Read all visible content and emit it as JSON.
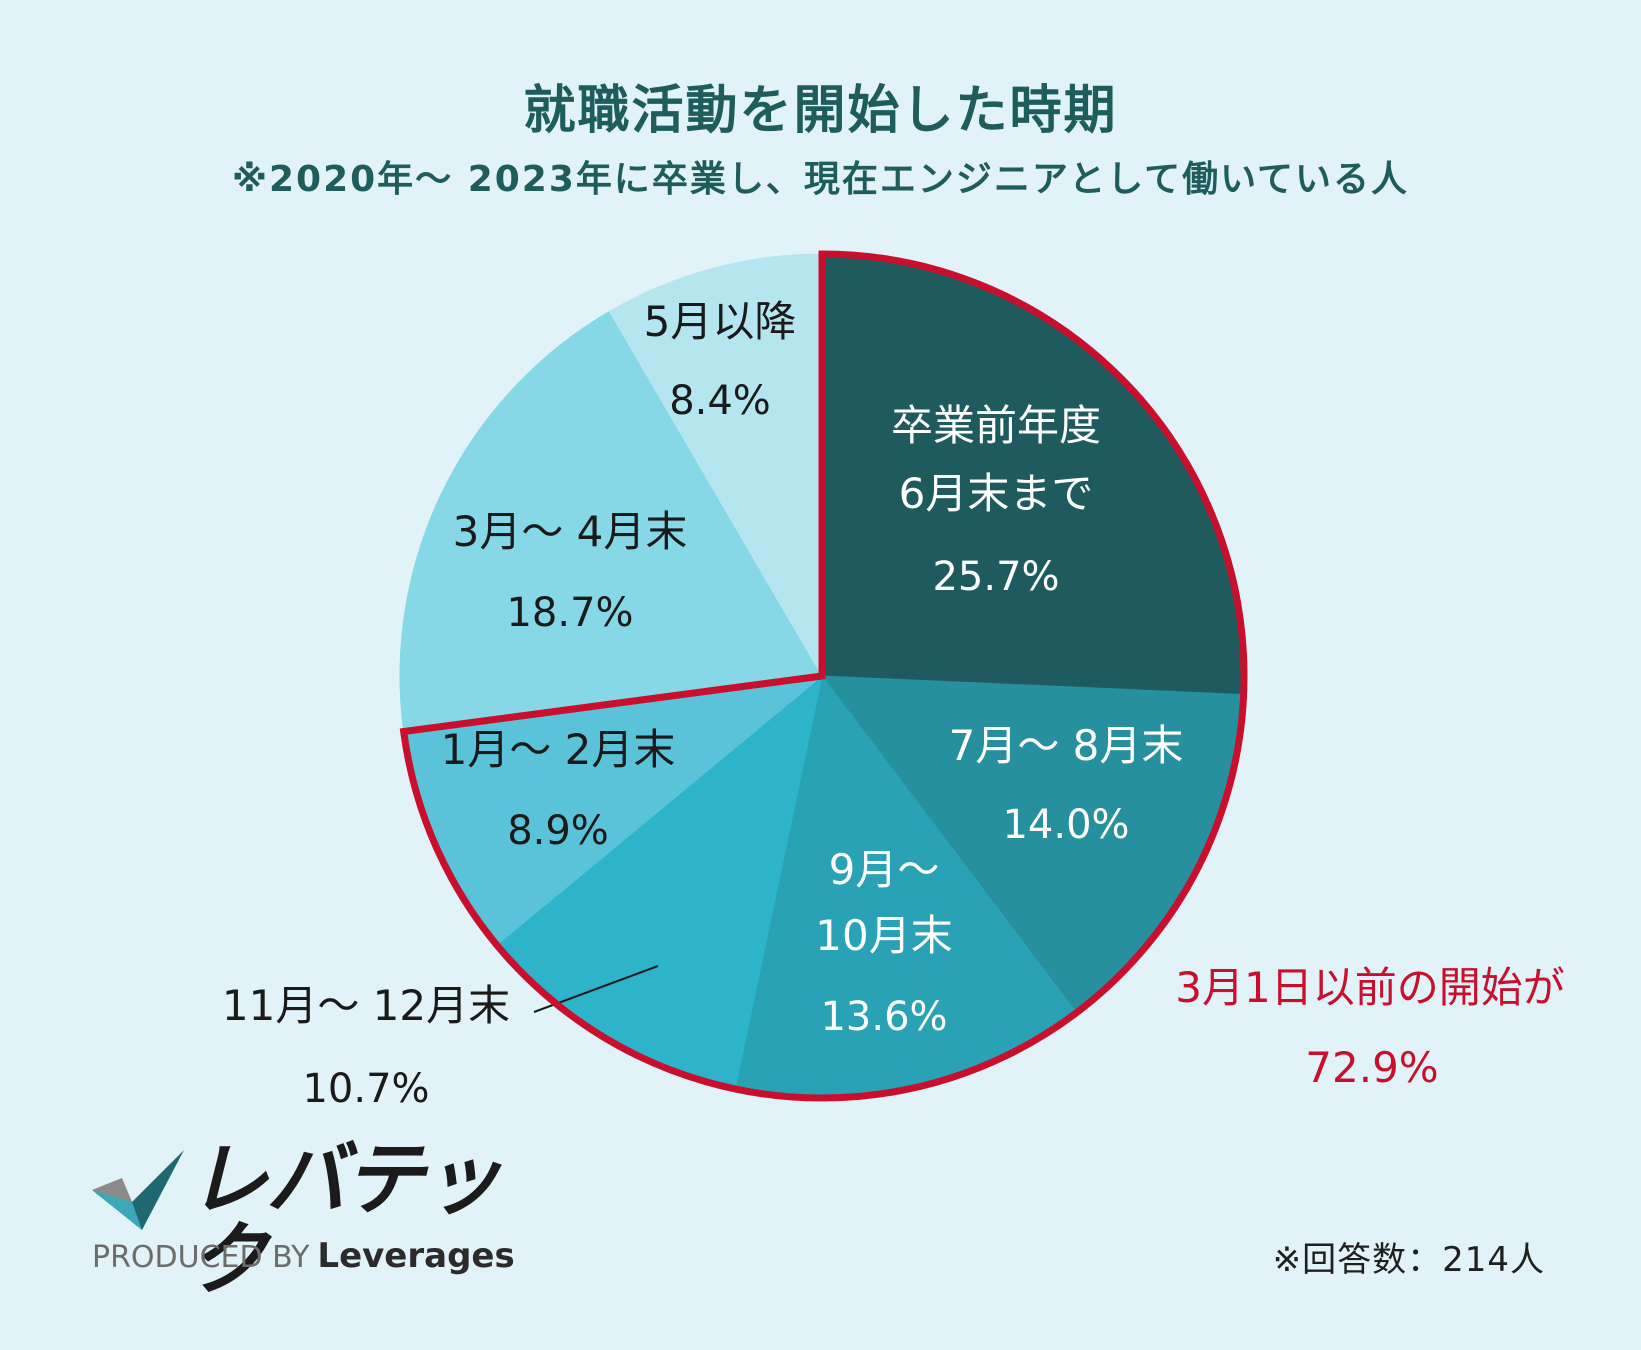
{
  "title": "就職活動を開始した時期",
  "subtitle": "※2020年〜 2023年に卒業し、現在エンジニアとして働いている人",
  "chart_data": {
    "type": "pie",
    "start_angle_deg": 0,
    "direction": "clockwise",
    "slices": [
      {
        "label_lines": [
          "卒業前年度",
          "6月末まで"
        ],
        "value": 25.7,
        "pct_label": "25.7%",
        "color": "#1f5b5e",
        "text_color": "#ffffff"
      },
      {
        "label_lines": [
          "7月〜 8月末"
        ],
        "value": 14.0,
        "pct_label": "14.0%",
        "color": "#26909f",
        "text_color": "#ffffff"
      },
      {
        "label_lines": [
          "9月〜",
          "10月末"
        ],
        "value": 13.6,
        "pct_label": "13.6%",
        "color": "#29a2b5",
        "text_color": "#ffffff"
      },
      {
        "label_lines": [
          "11月〜 12月末"
        ],
        "value": 10.7,
        "pct_label": "10.7%",
        "color": "#2db4cb",
        "text_color": "#1a1a1a"
      },
      {
        "label_lines": [
          "1月〜 2月末"
        ],
        "value": 8.9,
        "pct_label": "8.9%",
        "color": "#5ac3d9",
        "text_color": "#1a1a1a"
      },
      {
        "label_lines": [
          "3月〜 4月末"
        ],
        "value": 18.7,
        "pct_label": "18.7%",
        "color": "#86d8e6",
        "text_color": "#1a1a1a"
      },
      {
        "label_lines": [
          "5月以降"
        ],
        "value": 8.4,
        "pct_label": "8.4%",
        "color": "#b5e6ef",
        "text_color": "#1a1a1a"
      }
    ],
    "highlight": {
      "slice_range": [
        0,
        4
      ],
      "color": "#c8102e",
      "label_lines": [
        "3月1日以前の開始が"
      ],
      "pct_label": "72.9%"
    }
  },
  "logo": {
    "text": "レバテック",
    "produced_by": "PRODUCED BY",
    "brand": "Leverages"
  },
  "footnote": "※回答数：214人"
}
